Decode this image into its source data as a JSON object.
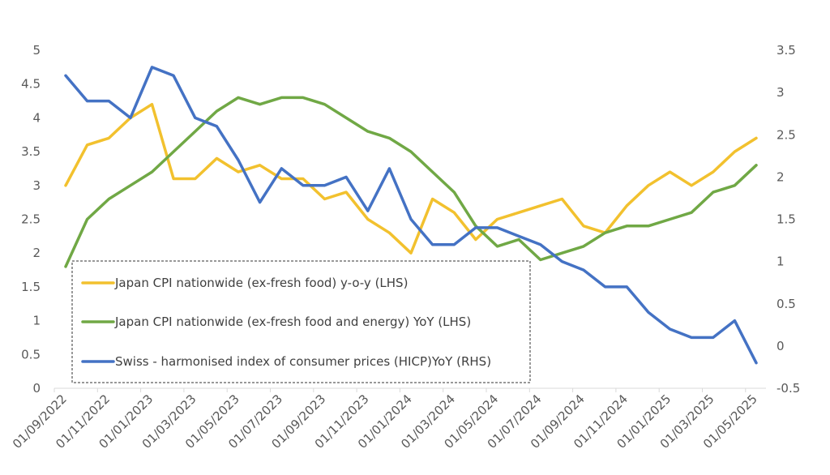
{
  "chart_data": {
    "type": "line",
    "title": "",
    "xlabel": "",
    "ylabel_left": "",
    "ylabel_right": "",
    "x": [
      "01/09/2022",
      "01/10/2022",
      "01/11/2022",
      "01/12/2022",
      "01/01/2023",
      "01/02/2023",
      "01/03/2023",
      "01/04/2023",
      "01/05/2023",
      "01/06/2023",
      "01/07/2023",
      "01/08/2023",
      "01/09/2023",
      "01/10/2023",
      "01/11/2023",
      "01/12/2023",
      "01/01/2024",
      "01/02/2024",
      "01/03/2024",
      "01/04/2024",
      "01/05/2024",
      "01/06/2024",
      "01/07/2024",
      "01/08/2024",
      "01/09/2024",
      "01/10/2024",
      "01/11/2024",
      "01/12/2024",
      "01/01/2025",
      "01/02/2025",
      "01/03/2025",
      "01/04/2025",
      "01/05/2025"
    ],
    "x_tick_labels": [
      "01/09/2022",
      "01/11/2022",
      "01/01/2023",
      "01/03/2023",
      "01/05/2023",
      "01/07/2023",
      "01/09/2023",
      "01/11/2023",
      "01/01/2024",
      "01/03/2024",
      "01/05/2024",
      "01/07/2024",
      "01/09/2024",
      "01/11/2024",
      "01/01/2025",
      "01/03/2025",
      "01/05/2025"
    ],
    "y_left": {
      "min": 0,
      "max": 5,
      "ticks": [
        "0",
        "0.5",
        "1",
        "1.5",
        "2",
        "2.5",
        "3",
        "3.5",
        "4",
        "4.5",
        "5"
      ]
    },
    "y_right": {
      "min": -0.5,
      "max": 3.5,
      "ticks": [
        "-0.5",
        "0",
        "0.5",
        "1",
        "1.5",
        "2",
        "2.5",
        "3",
        "3.5"
      ]
    },
    "grid": false,
    "legend_position": "bottom-left (inside, dashed border)",
    "series": [
      {
        "name": "Japan CPI nationwide (ex-fresh food) y-o-y (LHS)",
        "axis": "left",
        "color": "#F2C12E",
        "values": [
          3.0,
          3.6,
          3.7,
          4.0,
          4.2,
          3.1,
          3.1,
          3.4,
          3.2,
          3.3,
          3.1,
          3.1,
          2.8,
          2.9,
          2.5,
          2.3,
          2.0,
          2.8,
          2.6,
          2.2,
          2.5,
          2.6,
          2.7,
          2.8,
          2.4,
          2.3,
          2.7,
          3.0,
          3.2,
          3.0,
          3.2,
          3.5,
          3.7
        ]
      },
      {
        "name": "Japan CPI nationwide (ex-fresh food and energy) YoY (LHS)",
        "axis": "left",
        "color": "#70A845",
        "values": [
          1.8,
          2.5,
          2.8,
          3.0,
          3.2,
          3.5,
          3.8,
          4.1,
          4.3,
          4.2,
          4.3,
          4.3,
          4.2,
          4.0,
          3.8,
          3.7,
          3.5,
          3.2,
          2.9,
          2.4,
          2.1,
          2.2,
          1.9,
          2.0,
          2.1,
          2.3,
          2.4,
          2.4,
          2.5,
          2.6,
          2.9,
          3.0,
          3.3
        ]
      },
      {
        "name": "Swiss - harmonised index of consumer prices (HICP)YoY (RHS)",
        "axis": "right",
        "color": "#4472C4",
        "values": [
          3.2,
          2.9,
          2.9,
          2.7,
          3.3,
          3.2,
          2.7,
          2.6,
          2.2,
          1.7,
          2.1,
          1.9,
          1.9,
          2.0,
          1.6,
          2.1,
          1.5,
          1.2,
          1.2,
          1.4,
          1.4,
          1.3,
          1.2,
          1.0,
          0.9,
          0.7,
          0.7,
          0.4,
          0.2,
          0.1,
          0.1,
          0.3,
          -0.2
        ]
      }
    ]
  }
}
